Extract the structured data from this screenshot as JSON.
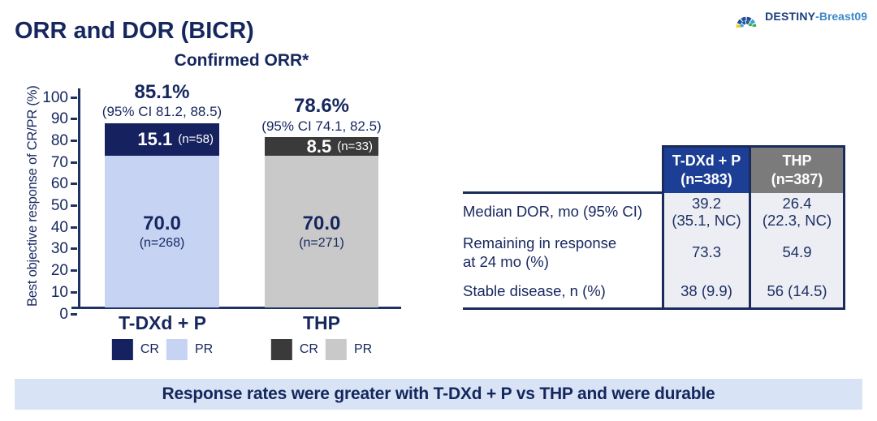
{
  "logo": {
    "brand": "DESTINY",
    "suffix": "-Breast09"
  },
  "title": "ORR and DOR (BICR)",
  "chart_data": {
    "type": "bar",
    "stacked": true,
    "title": "Confirmed ORR*",
    "ylabel": "Best objective response of CR/PR (%)",
    "ylim": [
      0,
      100
    ],
    "ytick_step": 10,
    "legend_labels": [
      "CR",
      "PR"
    ],
    "groups": [
      {
        "category": "T-DXd + P",
        "total_label": "85.1%",
        "ci_label": "(95% CI 81.2, 88.5)",
        "cr_pct": 15.1,
        "cr_label": "15.1",
        "cr_n": "(n=58)",
        "cr_color": "#16215f",
        "pr_pct": 70.0,
        "pr_label": "70.0",
        "pr_n": "(n=268)",
        "pr_color": "#c6d3f3"
      },
      {
        "category": "THP",
        "total_label": "78.6%",
        "ci_label": "(95% CI 74.1, 82.5)",
        "cr_pct": 8.5,
        "cr_label": "8.5",
        "cr_n": "(n=33)",
        "cr_color": "#3a3a3a",
        "pr_pct": 70.0,
        "pr_label": "70.0",
        "pr_n": "(n=271)",
        "pr_color": "#c9c9c9"
      }
    ]
  },
  "table": {
    "columns": [
      {
        "name": "T-DXd + P",
        "n": "(n=383)",
        "header_bg": "#1c3e94"
      },
      {
        "name": "THP",
        "n": "(n=387)",
        "header_bg": "#7b7b7b"
      }
    ],
    "rows": [
      {
        "label": "Median DOR, mo (95% CI)",
        "label2": "",
        "values": [
          [
            "39.2",
            "(35.1, NC)"
          ],
          [
            "26.4",
            "(22.3, NC)"
          ]
        ]
      },
      {
        "label": "Remaining in response",
        "label2": "at 24 mo (%)",
        "values": [
          [
            "73.3"
          ],
          [
            "54.9"
          ]
        ]
      },
      {
        "label": "Stable disease, n (%)",
        "label2": "",
        "values": [
          [
            "38 (9.9)"
          ],
          [
            "56 (14.5)"
          ]
        ]
      }
    ]
  },
  "banner": {
    "text": "Response rates were greater with T-DXd + P vs THP and were durable"
  },
  "colors": {
    "navy_text": "#16275e",
    "axis": "#1e3264",
    "table_border": "#1a2b5c",
    "cell_bg": "#eceef3",
    "banner_bg": "#d8e4f6",
    "logo_blue": "#1d4f9e",
    "logo_lightblue": "#35a3da",
    "logo_green": "#3fae4e",
    "logo_yellow": "#f2d117"
  }
}
